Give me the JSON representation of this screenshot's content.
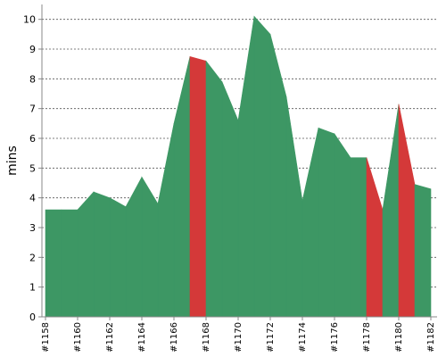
{
  "chart_data": {
    "type": "area",
    "ylabel": "mins",
    "ylim": [
      0,
      10.5
    ],
    "yticks": [
      0,
      1,
      2,
      3,
      4,
      5,
      6,
      7,
      8,
      9,
      10
    ],
    "xticks": [
      "#1158",
      "#1160",
      "#1162",
      "#1164",
      "#1166",
      "#1168",
      "#1170",
      "#1172",
      "#1174",
      "#1176",
      "#1178",
      "#1180",
      "#1182"
    ],
    "grid": true,
    "colors": {
      "success": "#3d9764",
      "failure": "#d43939",
      "grid": "#555555",
      "axis": "#888888"
    },
    "builds": [
      {
        "build": "#1158",
        "duration": 3.6,
        "status": "success"
      },
      {
        "build": "#1159",
        "duration": 3.6,
        "status": "success"
      },
      {
        "build": "#1160",
        "duration": 3.6,
        "status": "success"
      },
      {
        "build": "#1161",
        "duration": 4.2,
        "status": "success"
      },
      {
        "build": "#1162",
        "duration": 4.0,
        "status": "success"
      },
      {
        "build": "#1163",
        "duration": 3.7,
        "status": "success"
      },
      {
        "build": "#1164",
        "duration": 4.7,
        "status": "success"
      },
      {
        "build": "#1165",
        "duration": 3.8,
        "status": "success"
      },
      {
        "build": "#1166",
        "duration": 6.5,
        "status": "success"
      },
      {
        "build": "#1167",
        "duration": 8.75,
        "status": "success"
      },
      {
        "build": "#1168",
        "duration": 8.6,
        "status": "failure"
      },
      {
        "build": "#1169",
        "duration": 7.9,
        "status": "success"
      },
      {
        "build": "#1170",
        "duration": 6.6,
        "status": "success"
      },
      {
        "build": "#1171",
        "duration": 10.1,
        "status": "success"
      },
      {
        "build": "#1172",
        "duration": 9.5,
        "status": "success"
      },
      {
        "build": "#1173",
        "duration": 7.4,
        "status": "success"
      },
      {
        "build": "#1174",
        "duration": 3.9,
        "status": "success"
      },
      {
        "build": "#1175",
        "duration": 6.35,
        "status": "success"
      },
      {
        "build": "#1176",
        "duration": 6.15,
        "status": "success"
      },
      {
        "build": "#1177",
        "duration": 5.35,
        "status": "success"
      },
      {
        "build": "#1178",
        "duration": 5.35,
        "status": "success"
      },
      {
        "build": "#1179",
        "duration": 3.6,
        "status": "failure"
      },
      {
        "build": "#1180",
        "duration": 7.15,
        "status": "success"
      },
      {
        "build": "#1181",
        "duration": 4.45,
        "status": "failure"
      },
      {
        "build": "#1182",
        "duration": 4.3,
        "status": "success"
      }
    ]
  }
}
